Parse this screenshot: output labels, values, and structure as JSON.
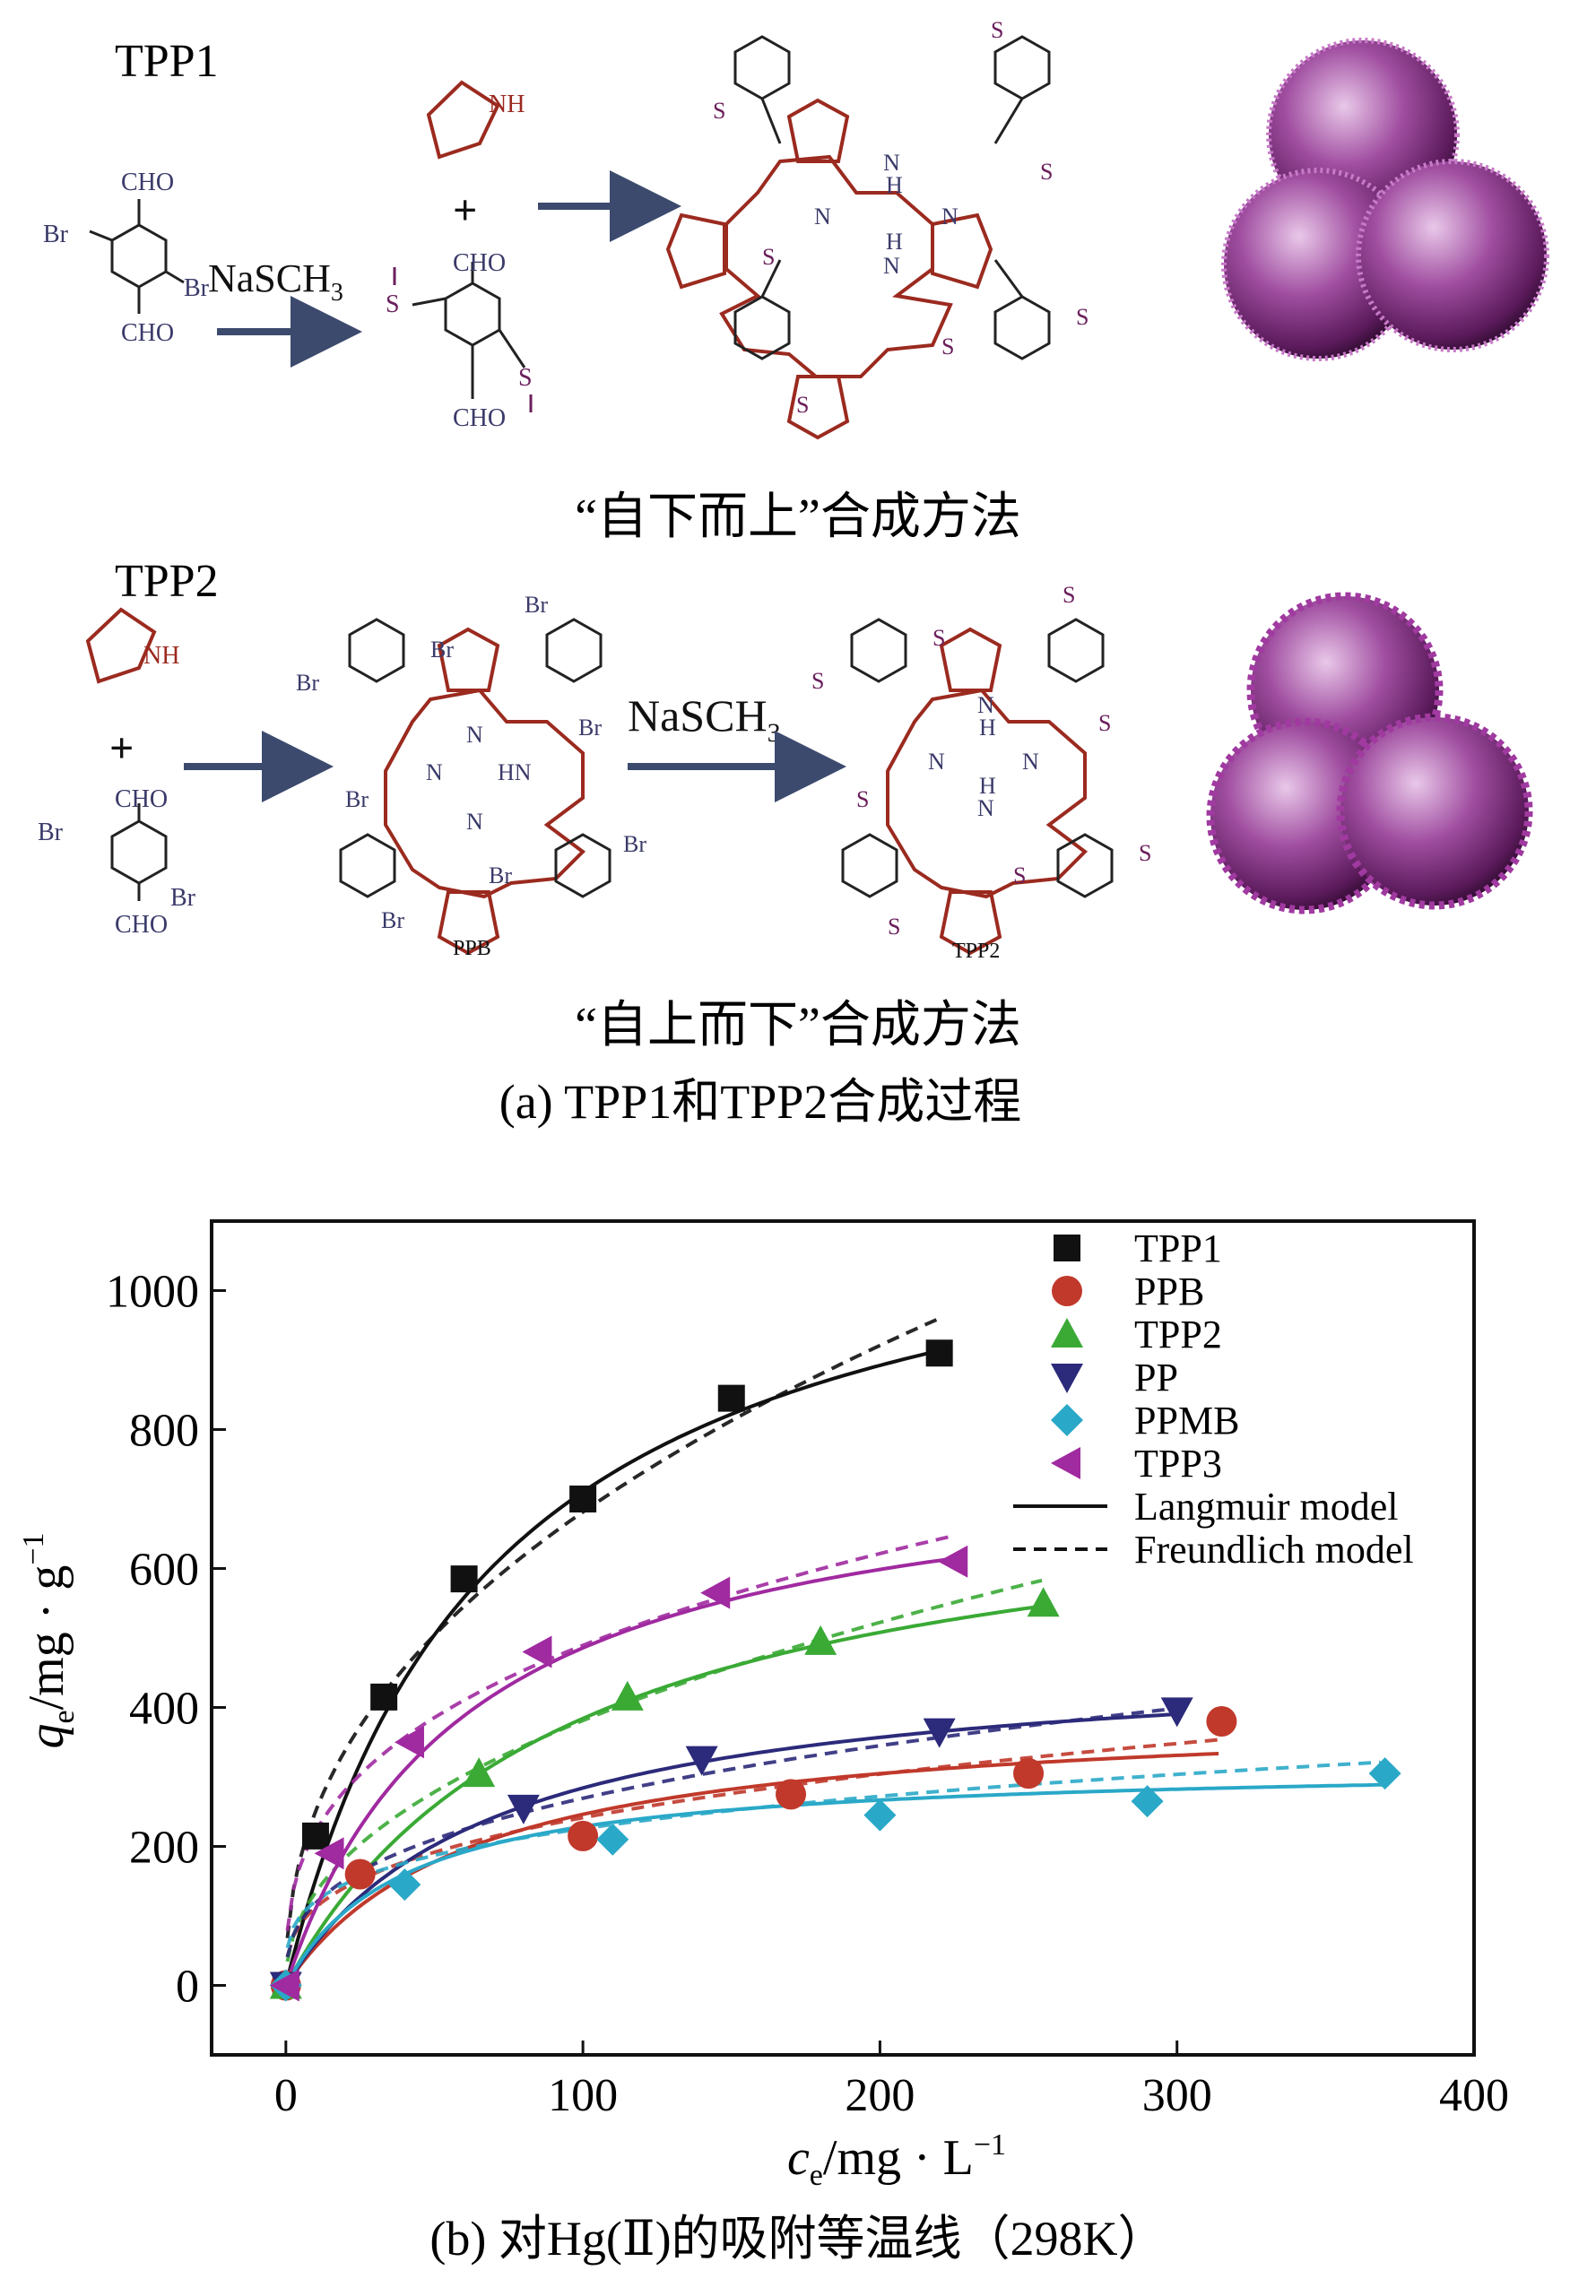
{
  "panel_a": {
    "tpp1_label": "TPP1",
    "tpp2_label": "TPP2",
    "bottom_up_caption": "“自下而上”合成方法",
    "top_down_caption": "“自上而下”合成方法",
    "caption": "(a) TPP1和TPP2合成过程",
    "reagent_nasch3": "NaSCH",
    "reagent_sub": "3",
    "cho": "CHO",
    "br": "Br",
    "s": "S",
    "nh": "NH",
    "ppb_label": "PPB",
    "tpp2_product_label": "TPP2",
    "n": "N",
    "h": "H",
    "hn": "HN",
    "plus": "+",
    "colors": {
      "ring_red": "#9b2a1f",
      "substituent": "#3a3a6a",
      "sulfur": "#6b1f5c",
      "arrow": "#3c4a6e",
      "sphere": "#7a2a7a"
    }
  },
  "chart_data": {
    "type": "scatter",
    "caption": "(b) 对Hg(Ⅱ)的吸附等温线（298K）",
    "xlabel_main": "c",
    "xlabel_sub": "e",
    "xlabel_unit": "/mg · L",
    "xlabel_sup": "−1",
    "ylabel_main": "q",
    "ylabel_sub": "e",
    "ylabel_unit": "/mg · g",
    "ylabel_sup": "−1",
    "xlim": [
      -25,
      400
    ],
    "ylim": [
      -100,
      1100
    ],
    "xticks": [
      0,
      100,
      200,
      300,
      400
    ],
    "yticks": [
      0,
      200,
      400,
      600,
      800,
      1000
    ],
    "series": [
      {
        "name": "TPP1",
        "marker": "square",
        "color": "#111111",
        "points": [
          [
            0,
            0
          ],
          [
            10,
            215
          ],
          [
            33,
            415
          ],
          [
            60,
            585
          ],
          [
            100,
            700
          ],
          [
            150,
            845
          ],
          [
            220,
            910
          ]
        ],
        "langmuir": {
          "qm": 1200,
          "k": 0.0145,
          "xmax": 220
        },
        "freundlich": {
          "kf": 92,
          "n": 2.3,
          "xmax": 222
        }
      },
      {
        "name": "PPB",
        "marker": "circle",
        "color": "#c0392b",
        "points": [
          [
            0,
            0
          ],
          [
            25,
            160
          ],
          [
            100,
            215
          ],
          [
            170,
            275
          ],
          [
            250,
            305
          ],
          [
            315,
            380
          ]
        ],
        "langmuir": {
          "qm": 400,
          "k": 0.016,
          "xmax": 315
        },
        "freundlich": {
          "kf": 52,
          "n": 3.0,
          "xmax": 315
        }
      },
      {
        "name": "TPP2",
        "marker": "triangle-up",
        "color": "#3aaa35",
        "points": [
          [
            0,
            0
          ],
          [
            65,
            305
          ],
          [
            115,
            415
          ],
          [
            180,
            495
          ],
          [
            255,
            550
          ]
        ],
        "langmuir": {
          "qm": 750,
          "k": 0.0105,
          "xmax": 255
        },
        "freundlich": {
          "kf": 47,
          "n": 2.2,
          "xmax": 255
        }
      },
      {
        "name": "PP",
        "marker": "triangle-down",
        "color": "#2c2a7a",
        "points": [
          [
            0,
            0
          ],
          [
            80,
            255
          ],
          [
            140,
            325
          ],
          [
            220,
            365
          ],
          [
            300,
            395
          ]
        ],
        "langmuir": {
          "qm": 480,
          "k": 0.0145,
          "xmax": 300
        },
        "freundlich": {
          "kf": 52,
          "n": 2.8,
          "xmax": 300
        }
      },
      {
        "name": "PPMB",
        "marker": "diamond",
        "color": "#2aa8c8",
        "points": [
          [
            0,
            0
          ],
          [
            40,
            145
          ],
          [
            110,
            210
          ],
          [
            200,
            245
          ],
          [
            290,
            265
          ],
          [
            370,
            305
          ]
        ],
        "langmuir": {
          "qm": 320,
          "k": 0.025,
          "xmax": 370
        },
        "freundlich": {
          "kf": 65,
          "n": 3.7,
          "xmax": 370
        }
      },
      {
        "name": "TPP3",
        "marker": "triangle-left",
        "color": "#a02aa0",
        "points": [
          [
            0,
            0
          ],
          [
            15,
            190
          ],
          [
            42,
            350
          ],
          [
            85,
            480
          ],
          [
            145,
            565
          ],
          [
            225,
            610
          ]
        ],
        "langmuir": {
          "qm": 780,
          "k": 0.0165,
          "xmax": 225
        },
        "freundlich": {
          "kf": 100,
          "n": 2.9,
          "xmax": 225
        }
      }
    ],
    "legend_lines": [
      {
        "name": "Langmuir model",
        "style": "solid"
      },
      {
        "name": "Freundlich model",
        "style": "dashed"
      }
    ],
    "legend_position": "top-right"
  }
}
